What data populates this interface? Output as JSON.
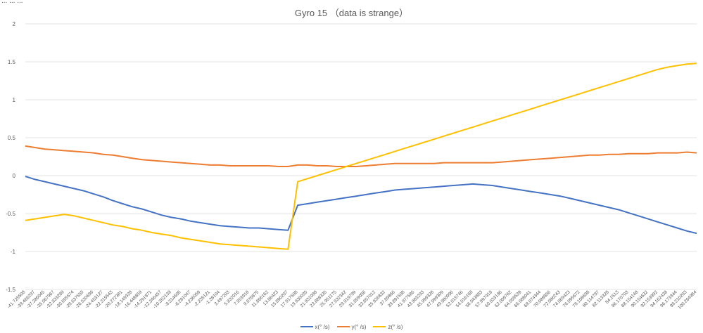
{
  "header": {
    "truncated_text": "... ... ..."
  },
  "chart_data": {
    "type": "line",
    "title": "Gyro 15 （data is strange）",
    "xlabel": "",
    "ylabel": "",
    "ylim": [
      -1.5,
      2
    ],
    "yticks": [
      "2",
      "1.5",
      "1",
      "0.5",
      "0",
      "-0.5",
      "-1",
      "-1.5"
    ],
    "ytick_values": [
      2,
      1.5,
      1,
      0.5,
      0,
      -0.5,
      -1,
      -1.5
    ],
    "grid": "horizontal",
    "legend_position": "bottom",
    "x_tick_labels": [
      "-41.725508",
      "-39.466297",
      "-37.286045",
      "-35.067967",
      "-32.833289",
      "-30.655574",
      "-28.637555",
      "-26.520696",
      "-24.453127",
      "-22.315543",
      "-20.272381",
      "-18.149328",
      "-16.448859",
      "-14.391871",
      "-12.346457",
      "-10.352138",
      "-8.314605",
      "-6.281047",
      "-4.236059",
      "-2.235121",
      "-1.38104",
      "3.497203",
      "5.832016",
      "7.853918",
      "9.876875",
      "11.866162",
      "13.86423",
      "15.890207",
      "17.917508",
      "19.930035",
      "21.931098",
      "23.888335",
      "25.951175",
      "27.932342",
      "29.919799",
      "31.859056",
      "33.857012",
      "35.926832",
      "37.89866",
      "39.891508",
      "41.977586",
      "43.983293",
      "45.999328",
      "47.999309",
      "49.980996",
      "52.015746",
      "54.016168",
      "56.043883",
      "57.997918",
      "60.033196",
      "62.009762",
      "64.059539",
      "66.088041",
      "68.074344",
      "70.088856",
      "72.086243",
      "74.069423",
      "76.095672",
      "78.108698",
      "80.114797",
      "82.113328",
      "84.1513",
      "86.170703",
      "88.154148",
      "90.154632",
      "92.153992",
      "94.162438",
      "96.173344",
      "98.210203",
      "100.264984"
    ],
    "x": [
      -41.725508,
      -39.466297,
      -37.286045,
      -35.067967,
      -32.833289,
      -30.655574,
      -28.637555,
      -26.520696,
      -24.453127,
      -22.315543,
      -20.272381,
      -18.149328,
      -16.448859,
      -14.391871,
      -12.346457,
      -10.352138,
      -8.314605,
      -6.281047,
      -4.236059,
      -2.235121,
      -1.38104,
      3.497203,
      5.832016,
      7.853918,
      9.876875,
      11.866162,
      13.86423,
      15.890207,
      17.917508,
      19.930035,
      21.931098,
      23.888335,
      25.951175,
      27.932342,
      29.919799,
      31.859056,
      33.857012,
      35.926832,
      37.89866,
      39.891508,
      41.977586,
      43.983293,
      45.999328,
      47.999309,
      49.980996,
      52.015746,
      54.016168,
      56.043883,
      57.997918,
      60.033196,
      62.009762,
      64.059539,
      66.088041,
      68.074344,
      70.088856,
      72.086243,
      74.069423,
      76.095672,
      78.108698,
      80.114797,
      82.113328,
      84.1513,
      86.170703,
      88.154148,
      90.154632,
      92.153992,
      94.162438,
      96.173344,
      98.210203,
      100.264984
    ],
    "series": [
      {
        "name": "x(° /s)",
        "color": "#4472C4",
        "values": [
          -0.01,
          -0.05,
          -0.08,
          -0.11,
          -0.14,
          -0.17,
          -0.2,
          -0.24,
          -0.28,
          -0.33,
          -0.37,
          -0.41,
          -0.44,
          -0.48,
          -0.52,
          -0.55,
          -0.57,
          -0.6,
          -0.62,
          -0.64,
          -0.66,
          -0.67,
          -0.68,
          -0.69,
          -0.69,
          -0.7,
          -0.71,
          -0.72,
          -0.39,
          -0.37,
          -0.35,
          -0.33,
          -0.31,
          -0.29,
          -0.27,
          -0.25,
          -0.23,
          -0.21,
          -0.19,
          -0.18,
          -0.17,
          -0.16,
          -0.15,
          -0.14,
          -0.13,
          -0.12,
          -0.11,
          -0.12,
          -0.13,
          -0.15,
          -0.17,
          -0.19,
          -0.21,
          -0.23,
          -0.25,
          -0.27,
          -0.3,
          -0.33,
          -0.36,
          -0.39,
          -0.42,
          -0.45,
          -0.49,
          -0.53,
          -0.57,
          -0.61,
          -0.65,
          -0.69,
          -0.73,
          -0.76
        ]
      },
      {
        "name": "y(° /s)",
        "color": "#ED7D31",
        "values": [
          0.39,
          0.37,
          0.35,
          0.34,
          0.33,
          0.32,
          0.31,
          0.3,
          0.28,
          0.27,
          0.25,
          0.23,
          0.21,
          0.2,
          0.19,
          0.18,
          0.17,
          0.16,
          0.15,
          0.14,
          0.14,
          0.13,
          0.13,
          0.13,
          0.13,
          0.13,
          0.12,
          0.12,
          0.14,
          0.14,
          0.13,
          0.13,
          0.12,
          0.12,
          0.12,
          0.13,
          0.14,
          0.15,
          0.16,
          0.16,
          0.16,
          0.16,
          0.16,
          0.17,
          0.17,
          0.17,
          0.17,
          0.17,
          0.17,
          0.18,
          0.19,
          0.2,
          0.21,
          0.22,
          0.23,
          0.24,
          0.25,
          0.26,
          0.27,
          0.27,
          0.28,
          0.28,
          0.29,
          0.29,
          0.29,
          0.3,
          0.3,
          0.3,
          0.31,
          0.3
        ]
      },
      {
        "name": "z(° /s)",
        "color": "#FFC000",
        "values": [
          -0.59,
          -0.57,
          -0.55,
          -0.53,
          -0.51,
          -0.53,
          -0.56,
          -0.59,
          -0.62,
          -0.65,
          -0.67,
          -0.7,
          -0.72,
          -0.75,
          -0.77,
          -0.79,
          -0.82,
          -0.84,
          -0.86,
          -0.88,
          -0.9,
          -0.91,
          -0.92,
          -0.93,
          -0.94,
          -0.95,
          -0.96,
          -0.97,
          -0.08,
          -0.04,
          0.0,
          0.04,
          0.08,
          0.12,
          0.16,
          0.2,
          0.24,
          0.28,
          0.32,
          0.36,
          0.4,
          0.44,
          0.48,
          0.52,
          0.56,
          0.6,
          0.64,
          0.68,
          0.72,
          0.76,
          0.8,
          0.84,
          0.88,
          0.92,
          0.96,
          1.0,
          1.04,
          1.08,
          1.12,
          1.16,
          1.2,
          1.24,
          1.28,
          1.32,
          1.36,
          1.4,
          1.43,
          1.45,
          1.47,
          1.48
        ]
      }
    ]
  }
}
